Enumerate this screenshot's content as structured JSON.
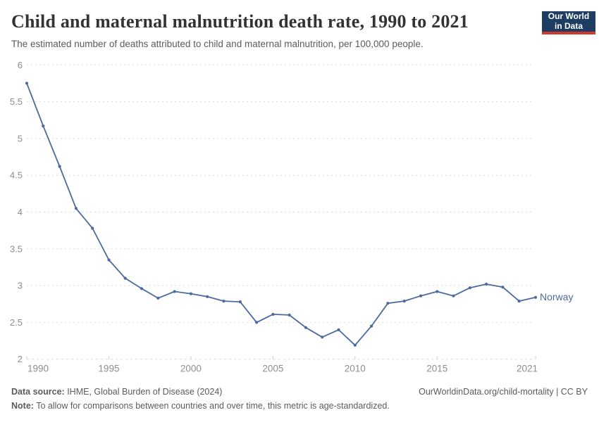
{
  "header": {
    "title": "Child and maternal malnutrition death rate, 1990 to 2021",
    "subtitle": "The estimated number of deaths attributed to child and maternal malnutrition, per 100,000 people.",
    "logo": {
      "line1": "Our World",
      "line2": "in Data"
    }
  },
  "chart_data": {
    "type": "line",
    "title": "Child and maternal malnutrition death rate, 1990 to 2021",
    "xlabel": "",
    "ylabel": "",
    "xlim": [
      1990,
      2021
    ],
    "ylim": [
      2,
      6
    ],
    "grid": true,
    "legend_position": "end-of-line",
    "x_ticks": [
      1990,
      1995,
      2000,
      2005,
      2010,
      2015,
      2021
    ],
    "x_tick_labels": [
      "1990",
      "1995",
      "2000",
      "2005",
      "2010",
      "2015",
      "2021"
    ],
    "y_ticks": [
      2,
      2.5,
      3,
      3.5,
      4,
      4.5,
      5,
      5.5,
      6
    ],
    "y_tick_labels": [
      "2",
      "2.5",
      "3",
      "3.5",
      "4",
      "4.5",
      "5",
      "5.5",
      "6"
    ],
    "x": [
      1990,
      1991,
      1992,
      1993,
      1994,
      1995,
      1996,
      1997,
      1998,
      1999,
      2000,
      2001,
      2002,
      2003,
      2004,
      2005,
      2006,
      2007,
      2008,
      2009,
      2010,
      2011,
      2012,
      2013,
      2014,
      2015,
      2016,
      2017,
      2018,
      2019,
      2020,
      2021
    ],
    "series": [
      {
        "name": "Norway",
        "color": "#4c6a9c",
        "values": [
          5.75,
          5.17,
          4.62,
          4.05,
          3.78,
          3.35,
          3.1,
          2.96,
          2.83,
          2.92,
          2.89,
          2.85,
          2.79,
          2.78,
          2.5,
          2.61,
          2.6,
          2.43,
          2.3,
          2.4,
          2.19,
          2.45,
          2.76,
          2.79,
          2.86,
          2.92,
          2.86,
          2.97,
          3.02,
          2.98,
          2.79,
          2.84
        ]
      }
    ]
  },
  "colors": {
    "line": "#4c6a9c",
    "grid": "#dcdcdc",
    "tick_label": "#8e8e8e",
    "title": "#333333",
    "subtitle": "#5b5b5b",
    "logo_bg": "#1d3d63",
    "logo_accent": "#cc3b2c"
  },
  "footer": {
    "source_label": "Data source:",
    "source_text": " IHME, Global Burden of Disease (2024)",
    "attribution": "OurWorldinData.org/child-mortality | CC BY",
    "note_label": "Note:",
    "note_text": " To allow for comparisons between countries and over time, this metric is age-standardized."
  }
}
